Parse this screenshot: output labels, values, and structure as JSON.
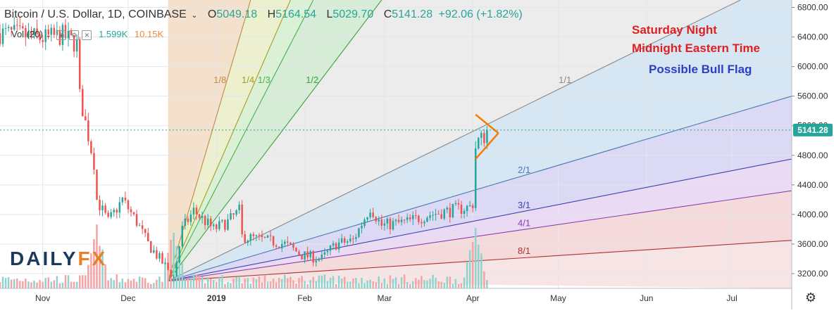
{
  "header": {
    "symbol": "Bitcoin / U.S. Dollar, 1D, COINBASE",
    "open_label": "O",
    "open": "5049.18",
    "high_label": "H",
    "high": "5164.54",
    "low_label": "L",
    "low": "5029.70",
    "close_label": "C",
    "close": "5141.28",
    "change": "+92.06 (+1.82%)"
  },
  "volume": {
    "label": "Vol (20)",
    "value1": "1.599K",
    "value2": "10.15K"
  },
  "annotations": {
    "line1": "Saturday Night",
    "line2": "Midnight Eastern Time",
    "line3": "Possible Bull Flag"
  },
  "logo": {
    "part1": "DAILY",
    "part2": "FX"
  },
  "colors": {
    "up": "#26a69a",
    "down": "#ef5350",
    "annotation_red": "#e02020",
    "annotation_blue": "#2b3fc4",
    "flag": "#f57c00",
    "price_line": "#26a69a"
  },
  "icons": [
    "chevron-down-icon",
    "eye-icon",
    "gear-icon",
    "close-icon",
    "settings-icon"
  ],
  "chart_data": {
    "type": "candlestick",
    "title": "Bitcoin / U.S. Dollar, 1D, COINBASE",
    "last_price": 5141.28,
    "ylim": [
      3000,
      6900
    ],
    "yticks": [
      3200,
      3600,
      4000,
      4400,
      4800,
      5200,
      5600,
      6000,
      6400,
      6800
    ],
    "ytick_labels": [
      "3200.00",
      "3600.00",
      "4000.00",
      "4400.00",
      "4800.00",
      "5200.00",
      "5600.00",
      "6000.00",
      "6400.00",
      "6800.00"
    ],
    "xlim": [
      "2018-10-17",
      "2019-07-22"
    ],
    "xticks": [
      "2018-11-01",
      "2018-12-01",
      "2019-01-01",
      "2019-02-01",
      "2019-03-01",
      "2019-04-01",
      "2019-05-01",
      "2019-06-01",
      "2019-07-01"
    ],
    "xtick_labels": [
      "Nov",
      "Dec",
      "2019",
      "Feb",
      "Mar",
      "Apr",
      "May",
      "Jun",
      "Jul"
    ],
    "price_path": [
      [
        "2018-10-17",
        6450
      ],
      [
        "2018-10-22",
        6440
      ],
      [
        "2018-11-01",
        6380
      ],
      [
        "2018-11-08",
        6420
      ],
      [
        "2018-11-13",
        6300
      ],
      [
        "2018-11-14",
        5600
      ],
      [
        "2018-11-19",
        4700
      ],
      [
        "2018-11-20",
        4200
      ],
      [
        "2018-11-24",
        3900
      ],
      [
        "2018-11-29",
        4200
      ],
      [
        "2018-12-04",
        3900
      ],
      [
        "2018-12-08",
        3600
      ],
      [
        "2018-12-14",
        3300
      ],
      [
        "2018-12-17",
        3150
      ],
      [
        "2018-12-20",
        3800
      ],
      [
        "2018-12-24",
        4050
      ],
      [
        "2018-12-31",
        3800
      ],
      [
        "2019-01-05",
        3900
      ],
      [
        "2019-01-09",
        4050
      ],
      [
        "2019-01-10",
        3700
      ],
      [
        "2019-01-18",
        3650
      ],
      [
        "2019-01-25",
        3600
      ],
      [
        "2019-01-31",
        3450
      ],
      [
        "2019-02-07",
        3400
      ],
      [
        "2019-02-12",
        3600
      ],
      [
        "2019-02-18",
        3650
      ],
      [
        "2019-02-24",
        4100
      ],
      [
        "2019-02-28",
        3850
      ],
      [
        "2019-03-09",
        3900
      ],
      [
        "2019-03-17",
        4000
      ],
      [
        "2019-03-24",
        4050
      ],
      [
        "2019-03-31",
        4100
      ],
      [
        "2019-04-01",
        4150
      ],
      [
        "2019-04-02",
        4900
      ],
      [
        "2019-04-03",
        5000
      ],
      [
        "2019-04-05",
        5050
      ],
      [
        "2019-04-06",
        5141.28
      ]
    ],
    "volume_peak_dates": [
      "2018-11-20",
      "2018-12-17",
      "2019-04-02"
    ],
    "gann_fan": {
      "origin": [
        "2018-12-15",
        3100
      ],
      "lines": [
        {
          "label": "1/8",
          "end": [
            "2019-01-13",
            6900
          ],
          "color": "#c28840"
        },
        {
          "label": "1/4",
          "end": [
            "2019-01-27",
            6900
          ],
          "color": "#a0a020"
        },
        {
          "label": "1/3",
          "end": [
            "2019-02-04",
            6900
          ],
          "color": "#4caf50"
        },
        {
          "label": "1/2",
          "end": [
            "2019-02-28",
            6900
          ],
          "color": "#3aa33a"
        },
        {
          "label": "1/1",
          "end": [
            "2019-07-04",
            6900
          ],
          "color": "#888888"
        },
        {
          "label": "2/1",
          "end": [
            "2019-07-22",
            5600
          ],
          "color": "#4a78b8"
        },
        {
          "label": "3/1",
          "end": [
            "2019-07-22",
            4750
          ],
          "color": "#3f3fb0"
        },
        {
          "label": "4/1",
          "end": [
            "2019-07-22",
            4320
          ],
          "color": "#8a3fb0"
        },
        {
          "label": "8/1",
          "end": [
            "2019-07-22",
            3650
          ],
          "color": "#b03030"
        }
      ]
    },
    "flag_pattern": {
      "upper": [
        [
          "2019-04-02",
          5350
        ],
        [
          "2019-04-10",
          5100
        ]
      ],
      "lower": [
        [
          "2019-04-02",
          4750
        ],
        [
          "2019-04-10",
          5100
        ]
      ]
    }
  }
}
